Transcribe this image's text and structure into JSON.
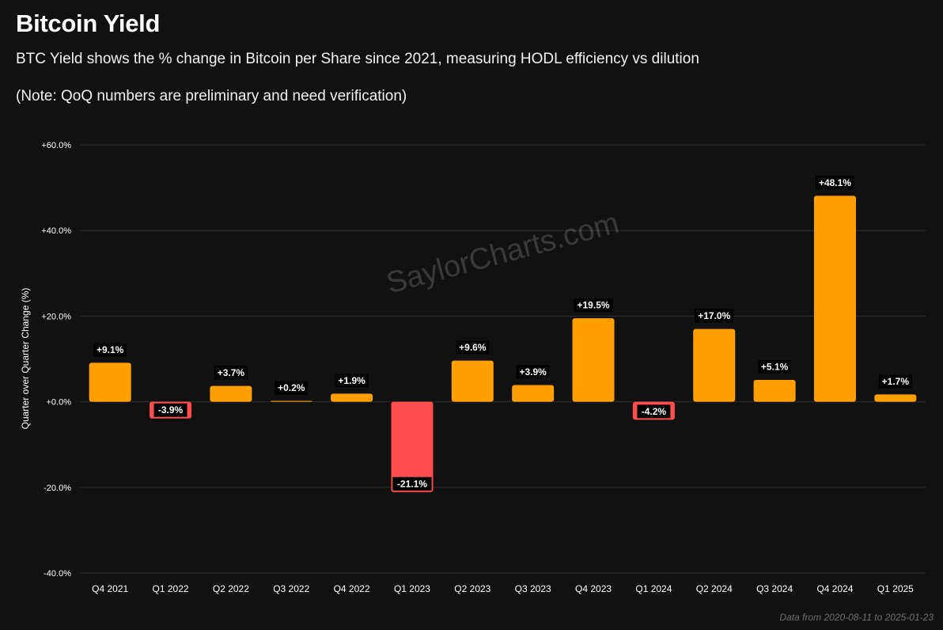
{
  "header": {
    "title": "Bitcoin Yield",
    "subtitle": "BTC Yield shows the % change in Bitcoin per Share since 2021, measuring HODL efficiency vs dilution",
    "note": "(Note: QoQ numbers are preliminary and need verification)"
  },
  "watermark": "SaylorCharts.com",
  "footer": "Data from 2020-08-11 to 2025-01-23",
  "colors": {
    "positive": "#FFA000",
    "negative": "#FF4D4D",
    "grid": "#2e2e2e",
    "background": "#111111"
  },
  "chart_data": {
    "type": "bar",
    "title": "Bitcoin Yield",
    "xlabel": "",
    "ylabel": "Quarter over Quarter Change (%)",
    "ylim": [
      -40,
      60
    ],
    "yticks": [
      60,
      40,
      20,
      0,
      -20,
      -40
    ],
    "ytick_labels": [
      "+60.0%",
      "+40.0%",
      "+20.0%",
      "+0.0%",
      "-20.0%",
      "-40.0%"
    ],
    "categories": [
      "Q4 2021",
      "Q1 2022",
      "Q2 2022",
      "Q3 2022",
      "Q4 2022",
      "Q1 2023",
      "Q2 2023",
      "Q3 2023",
      "Q4 2023",
      "Q1 2024",
      "Q2 2024",
      "Q3 2024",
      "Q4 2024",
      "Q1 2025"
    ],
    "values": [
      9.1,
      -3.9,
      3.7,
      0.2,
      1.9,
      -21.1,
      9.6,
      3.9,
      19.5,
      -4.2,
      17.0,
      5.1,
      48.1,
      1.7
    ],
    "data_labels": [
      "+9.1%",
      "-3.9%",
      "+3.7%",
      "+0.2%",
      "+1.9%",
      "-21.1%",
      "+9.6%",
      "+3.9%",
      "+19.5%",
      "-4.2%",
      "+17.0%",
      "+5.1%",
      "+48.1%",
      "+1.7%"
    ],
    "grid": true,
    "legend": "none"
  }
}
